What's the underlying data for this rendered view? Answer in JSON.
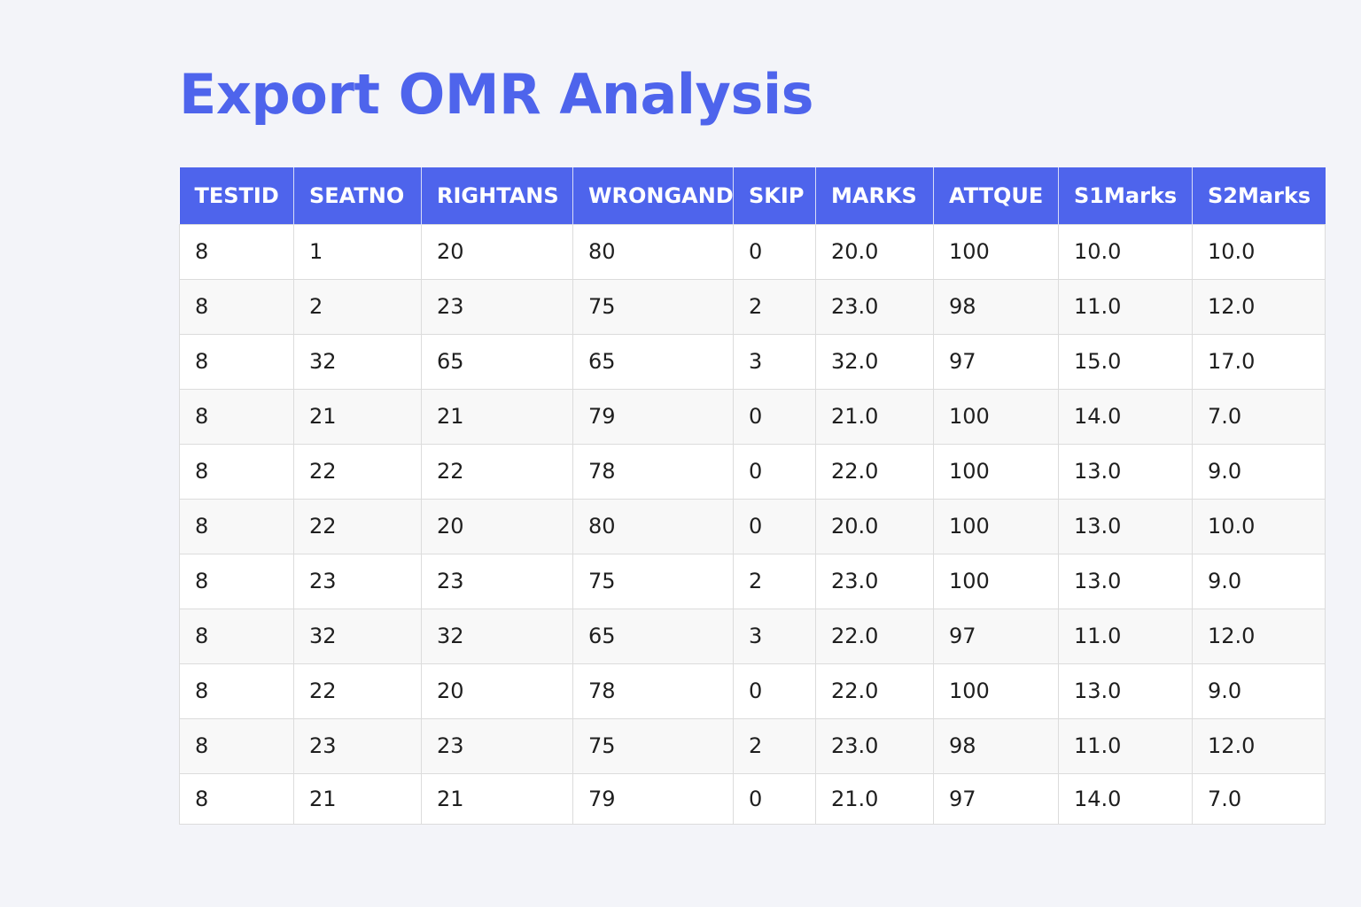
{
  "page": {
    "title": "Export OMR Analysis"
  },
  "colors": {
    "accent": "#4e64ec",
    "background": "#f3f4f9"
  },
  "table": {
    "columns": [
      "TESTID",
      "SEATNO",
      "RIGHTANS",
      "WRONGAND",
      "SKIP",
      "MARKS",
      "ATTQUE",
      "S1Marks",
      "S2Marks"
    ],
    "rows": [
      [
        "8",
        "1",
        "20",
        "80",
        "0",
        "20.0",
        "100",
        "10.0",
        "10.0"
      ],
      [
        "8",
        "2",
        "23",
        "75",
        "2",
        "23.0",
        "98",
        "11.0",
        "12.0"
      ],
      [
        "8",
        "32",
        "65",
        "65",
        "3",
        "32.0",
        "97",
        "15.0",
        "17.0"
      ],
      [
        "8",
        "21",
        "21",
        "79",
        "0",
        "21.0",
        "100",
        "14.0",
        "7.0"
      ],
      [
        "8",
        "22",
        "22",
        "78",
        "0",
        "22.0",
        "100",
        "13.0",
        "9.0"
      ],
      [
        "8",
        "22",
        "20",
        "80",
        "0",
        "20.0",
        "100",
        "13.0",
        "10.0"
      ],
      [
        "8",
        "23",
        "23",
        "75",
        "2",
        "23.0",
        "100",
        "13.0",
        "9.0"
      ],
      [
        "8",
        "32",
        "32",
        "65",
        "3",
        "22.0",
        "97",
        "11.0",
        "12.0"
      ],
      [
        "8",
        "22",
        "20",
        "78",
        "0",
        "22.0",
        "100",
        "13.0",
        "9.0"
      ],
      [
        "8",
        "23",
        "23",
        "75",
        "2",
        "23.0",
        "98",
        "11.0",
        "12.0"
      ],
      [
        "8",
        "21",
        "21",
        "79",
        "0",
        "21.0",
        "97",
        "14.0",
        "7.0"
      ]
    ]
  }
}
